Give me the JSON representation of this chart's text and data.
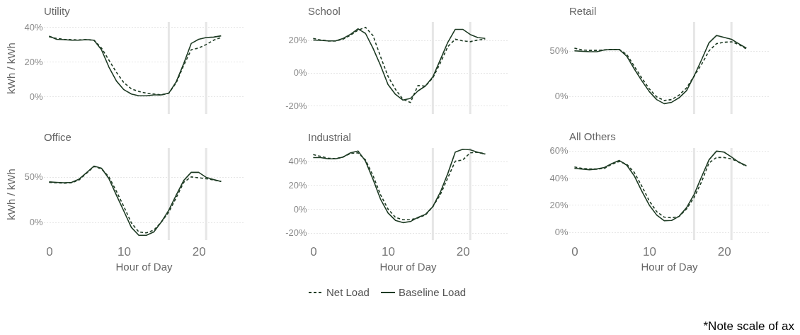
{
  "chart_data": [
    {
      "type": "line",
      "title": "Utility",
      "ylabel": "kWh / kWh",
      "x": [
        0,
        1,
        2,
        3,
        4,
        5,
        6,
        7,
        8,
        9,
        10,
        11,
        12,
        13,
        14,
        15,
        16,
        17,
        18,
        19,
        20,
        21,
        22,
        23
      ],
      "xlim": [
        -0.7,
        26
      ],
      "xticks": [
        0,
        10,
        20
      ],
      "ylim": [
        -10,
        43
      ],
      "yticks": [
        {
          "value": 0,
          "label": "0%"
        },
        {
          "value": 20,
          "label": "20%"
        },
        {
          "value": 40,
          "label": "40%"
        }
      ],
      "tick_labels": "y",
      "grid": "y",
      "legend": false,
      "series": [
        {
          "color": "#1e3b24",
          "line_style": "dashed",
          "values": [
            34.5,
            33.5,
            33,
            32.8,
            32.7,
            32.8,
            32.5,
            28,
            21,
            14,
            8,
            4.5,
            3,
            2,
            1.5,
            1,
            2,
            8,
            18,
            27,
            28,
            30,
            32.5,
            34
          ]
        },
        {
          "color": "#1e3b24",
          "line_style": "solid",
          "values": [
            34.8,
            33,
            32.8,
            32.5,
            32.5,
            32.8,
            32.5,
            27,
            17,
            9,
            4,
            1.5,
            0.5,
            0.5,
            1,
            1,
            2,
            8.6,
            19,
            30.6,
            33,
            34,
            34.3,
            35
          ]
        }
      ],
      "ref_lines": [
        {
          "axis": "x",
          "value": 16,
          "color": "#e6e6e6"
        },
        {
          "axis": "x",
          "value": 21,
          "color": "#e6e6e6"
        }
      ]
    },
    {
      "type": "line",
      "title": "School",
      "x": [
        0,
        1,
        2,
        3,
        4,
        5,
        6,
        7,
        8,
        9,
        10,
        11,
        12,
        13,
        14,
        15,
        16,
        17,
        18,
        19,
        20,
        21,
        22,
        23
      ],
      "xlim": [
        -0.7,
        26
      ],
      "xticks": [
        0,
        10,
        20
      ],
      "ylim": [
        -25,
        31
      ],
      "yticks": [
        {
          "value": -20,
          "label": "-20%"
        },
        {
          "value": 0,
          "label": "0%"
        },
        {
          "value": 20,
          "label": "20%"
        }
      ],
      "tick_labels": "y",
      "grid": "y",
      "legend": false,
      "series": [
        {
          "color": "#1e3b24",
          "line_style": "dashed",
          "values": [
            21,
            20,
            19.5,
            19.5,
            20.5,
            23,
            26,
            27.7,
            22.7,
            10,
            -2,
            -10,
            -16,
            -18,
            -7.7,
            -8,
            -3,
            6,
            16,
            20.5,
            19.5,
            19,
            20,
            20.5
          ]
        },
        {
          "color": "#1e3b24",
          "line_style": "solid",
          "values": [
            20,
            19.8,
            19.5,
            19.5,
            21,
            23.5,
            26.8,
            24,
            15,
            4.6,
            -7,
            -13,
            -16.5,
            -15.5,
            -11,
            -8,
            -2.4,
            8,
            18.6,
            26.5,
            26.5,
            23.4,
            21.5,
            21
          ]
        }
      ],
      "ref_lines": [
        {
          "axis": "x",
          "value": 16,
          "color": "#e6e6e6"
        },
        {
          "axis": "x",
          "value": 21,
          "color": "#e6e6e6"
        }
      ]
    },
    {
      "type": "line",
      "title": "Retail",
      "x": [
        0,
        1,
        2,
        3,
        4,
        5,
        6,
        7,
        8,
        9,
        10,
        11,
        12,
        13,
        14,
        15,
        16,
        17,
        18,
        19,
        20,
        21,
        22,
        23
      ],
      "xlim": [
        -0.7,
        26
      ],
      "xticks": [
        0,
        10,
        20
      ],
      "ylim": [
        -20,
        82
      ],
      "yticks": [
        {
          "value": 0,
          "label": "0%"
        },
        {
          "value": 50,
          "label": "50%"
        }
      ],
      "tick_labels": "y",
      "grid": "y",
      "legend": false,
      "series": [
        {
          "color": "#1e3b24",
          "line_style": "dashed",
          "values": [
            53,
            51,
            50.5,
            50.5,
            51,
            51.5,
            51.5,
            46,
            33,
            20,
            8,
            -1,
            -5,
            -4,
            1,
            9,
            22,
            35,
            50,
            58,
            59.5,
            60,
            57,
            52
          ]
        },
        {
          "color": "#1e3b24",
          "line_style": "solid",
          "values": [
            50,
            49.5,
            49,
            49,
            51,
            51.5,
            51.5,
            44,
            30,
            17,
            5,
            -4,
            -8.5,
            -7,
            -2,
            6,
            22,
            40,
            59,
            67,
            65,
            62.8,
            57.8,
            53
          ]
        }
      ],
      "ref_lines": [
        {
          "axis": "x",
          "value": 16,
          "color": "#e6e6e6"
        },
        {
          "axis": "x",
          "value": 21,
          "color": "#e6e6e6"
        }
      ]
    },
    {
      "type": "line",
      "title": "Office",
      "xlabel": "Hour of Day",
      "ylabel": "kWh / kWh",
      "x": [
        0,
        1,
        2,
        3,
        4,
        5,
        6,
        7,
        8,
        9,
        10,
        11,
        12,
        13,
        14,
        15,
        16,
        17,
        18,
        19,
        20,
        21,
        22,
        23
      ],
      "xlim": [
        -0.7,
        26
      ],
      "xticks": [
        0,
        10,
        20
      ],
      "ylim": [
        -20,
        82
      ],
      "yticks": [
        {
          "value": 0,
          "label": "0%"
        },
        {
          "value": 50,
          "label": "50%"
        }
      ],
      "grid": "y",
      "legend": false,
      "series": [
        {
          "color": "#1e3b24",
          "line_style": "dashed",
          "values": [
            44,
            43.5,
            43,
            43.5,
            46.5,
            54,
            61.5,
            59,
            50,
            34,
            17,
            -1,
            -11,
            -12,
            -9,
            0,
            11,
            27,
            44,
            50,
            49,
            48,
            46.5,
            45
          ]
        },
        {
          "color": "#1e3b24",
          "line_style": "solid",
          "values": [
            44.4,
            44,
            43.5,
            44,
            47.5,
            54.6,
            62,
            59.6,
            48,
            29.7,
            12,
            -6,
            -14.7,
            -14.7,
            -11,
            0,
            13,
            30,
            46,
            55,
            55,
            49.5,
            47,
            45
          ]
        }
      ],
      "ref_lines": [
        {
          "axis": "x",
          "value": 16,
          "color": "#e6e6e6"
        },
        {
          "axis": "x",
          "value": 21,
          "color": "#e6e6e6"
        }
      ]
    },
    {
      "type": "line",
      "title": "Industrial",
      "xlabel": "Hour of Day",
      "x": [
        0,
        1,
        2,
        3,
        4,
        5,
        6,
        7,
        8,
        9,
        10,
        11,
        12,
        13,
        14,
        15,
        16,
        17,
        18,
        19,
        20,
        21,
        22,
        23
      ],
      "xlim": [
        -0.7,
        26
      ],
      "xticks": [
        0,
        10,
        20
      ],
      "ylim": [
        -26,
        51
      ],
      "yticks": [
        {
          "value": -20,
          "label": "-20%"
        },
        {
          "value": 0,
          "label": "0%"
        },
        {
          "value": 20,
          "label": "20%"
        },
        {
          "value": 40,
          "label": "40%"
        }
      ],
      "grid": "y",
      "legend": "bottom",
      "series": [
        {
          "name": "Net Load",
          "color": "#1e3b24",
          "line_style": "dashed",
          "values": [
            45.5,
            44,
            42.5,
            42,
            43.5,
            46.5,
            47,
            41,
            28,
            12,
            0,
            -7,
            -9,
            -9,
            -7.5,
            -5,
            2,
            12,
            26,
            40,
            41,
            47,
            47.5,
            46
          ]
        },
        {
          "name": "Baseline Load",
          "color": "#1e3b24",
          "line_style": "solid",
          "values": [
            43,
            43,
            42,
            42,
            43.5,
            47,
            48.5,
            40,
            24.8,
            8.3,
            -3.3,
            -9.5,
            -11.4,
            -10.5,
            -7,
            -4.6,
            2,
            14,
            29.6,
            47.6,
            50,
            49.5,
            47.5,
            46
          ]
        }
      ],
      "ref_lines": [
        {
          "axis": "x",
          "value": 16,
          "color": "#e6e6e6"
        },
        {
          "axis": "x",
          "value": 21,
          "color": "#e6e6e6"
        }
      ]
    },
    {
      "type": "line",
      "title": "All Others",
      "xlabel": "Hour of Day",
      "x": [
        0,
        1,
        2,
        3,
        4,
        5,
        6,
        7,
        8,
        9,
        10,
        11,
        12,
        13,
        14,
        15,
        16,
        17,
        18,
        19,
        20,
        21,
        22,
        23
      ],
      "xlim": [
        -0.7,
        26
      ],
      "xticks": [
        0,
        10,
        20
      ],
      "ylim": [
        -6,
        62
      ],
      "yticks": [
        {
          "value": 0,
          "label": "0%"
        },
        {
          "value": 20,
          "label": "20%"
        },
        {
          "value": 40,
          "label": "40%"
        },
        {
          "value": 60,
          "label": "60%"
        }
      ],
      "grid": "y",
      "legend": false,
      "series": [
        {
          "color": "#1e3b24",
          "line_style": "dashed",
          "values": [
            48,
            47,
            46.5,
            46.5,
            47,
            50,
            52,
            50,
            44,
            34,
            23,
            15,
            11,
            10.5,
            11.5,
            17,
            25.5,
            37,
            51,
            55,
            55,
            54,
            51.5,
            48.5
          ]
        },
        {
          "color": "#1e3b24",
          "line_style": "solid",
          "values": [
            47,
            46.5,
            46,
            46.5,
            47.6,
            50.5,
            52.8,
            49.3,
            41.5,
            30.3,
            19.9,
            12.5,
            8.3,
            8.5,
            11.6,
            18,
            27.7,
            40.7,
            53.3,
            59.7,
            59,
            55.4,
            51.5,
            48.9
          ]
        }
      ],
      "ref_lines": [
        {
          "axis": "x",
          "value": 16,
          "color": "#e6e6e6"
        },
        {
          "axis": "x",
          "value": 21,
          "color": "#e6e6e6"
        }
      ],
      "annotations": [
        "*Note scale of ax"
      ]
    }
  ]
}
